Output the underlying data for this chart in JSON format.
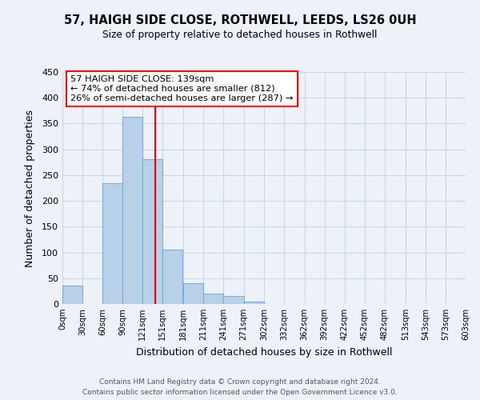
{
  "title": "57, HAIGH SIDE CLOSE, ROTHWELL, LEEDS, LS26 0UH",
  "subtitle": "Size of property relative to detached houses in Rothwell",
  "xlabel": "Distribution of detached houses by size in Rothwell",
  "ylabel": "Number of detached properties",
  "bar_left_edges": [
    0,
    30,
    60,
    90,
    120,
    150,
    181,
    211,
    241,
    271,
    302,
    332,
    362,
    392,
    422,
    452,
    482,
    513,
    543,
    573
  ],
  "bar_heights": [
    35,
    0,
    235,
    363,
    281,
    105,
    40,
    20,
    15,
    5,
    0,
    0,
    0,
    0,
    0,
    0,
    0,
    0,
    0,
    0
  ],
  "bar_color": "#b8d0e8",
  "bar_edgecolor": "#7aade0",
  "vline_x": 139,
  "vline_color": "red",
  "annotation_text": "57 HAIGH SIDE CLOSE: 139sqm\n← 74% of detached houses are smaller (812)\n26% of semi-detached houses are larger (287) →",
  "annotation_box_color": "white",
  "annotation_box_edgecolor": "red",
  "xlim": [
    0,
    603
  ],
  "ylim": [
    0,
    450
  ],
  "yticks": [
    0,
    50,
    100,
    150,
    200,
    250,
    300,
    350,
    400,
    450
  ],
  "xtick_labels": [
    "0sqm",
    "30sqm",
    "60sqm",
    "90sqm",
    "121sqm",
    "151sqm",
    "181sqm",
    "211sqm",
    "241sqm",
    "271sqm",
    "302sqm",
    "332sqm",
    "362sqm",
    "392sqm",
    "422sqm",
    "452sqm",
    "482sqm",
    "513sqm",
    "543sqm",
    "573sqm",
    "603sqm"
  ],
  "xtick_positions": [
    0,
    30,
    60,
    90,
    120,
    150,
    181,
    211,
    241,
    271,
    302,
    332,
    362,
    392,
    422,
    452,
    482,
    513,
    543,
    573,
    603
  ],
  "grid_color": "#c8d8e8",
  "bg_color": "#eef2f8",
  "footer_line1": "Contains HM Land Registry data © Crown copyright and database right 2024.",
  "footer_line2": "Contains public sector information licensed under the Open Government Licence v3.0."
}
